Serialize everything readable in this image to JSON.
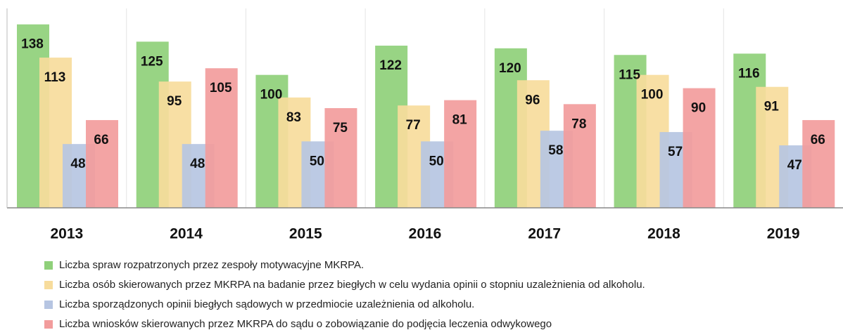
{
  "chart_data": {
    "type": "bar",
    "categories": [
      "2013",
      "2014",
      "2015",
      "2016",
      "2017",
      "2018",
      "2019"
    ],
    "series": [
      {
        "name": "Liczba spraw rozpatrzonych przez zespoły motywacyjne MKRPA.",
        "color": "#8fd07a",
        "values": [
          138,
          125,
          100,
          122,
          120,
          115,
          116
        ]
      },
      {
        "name": "Liczba osób skierowanych przez MKRPA na badanie przez biegłych w celu wydania opinii o stopniu uzależnienia od alkoholu.",
        "color": "#f7dc9c",
        "values": [
          113,
          95,
          83,
          77,
          96,
          100,
          91
        ]
      },
      {
        "name": "Liczba sporządzonych opinii biegłych sądowych w przedmiocie uzależnienia od alkoholu.",
        "color": "#b6c5e2",
        "values": [
          48,
          48,
          50,
          50,
          58,
          57,
          47
        ]
      },
      {
        "name": "Liczba wniosków skierowanych przez MKRPA do sądu o zobowiązanie do podjęcia leczenia odwykowego",
        "color": "#f29c9c",
        "values": [
          66,
          105,
          75,
          81,
          78,
          90,
          66
        ]
      }
    ],
    "ylim": [
      0,
      150
    ],
    "legend": "bottom"
  }
}
